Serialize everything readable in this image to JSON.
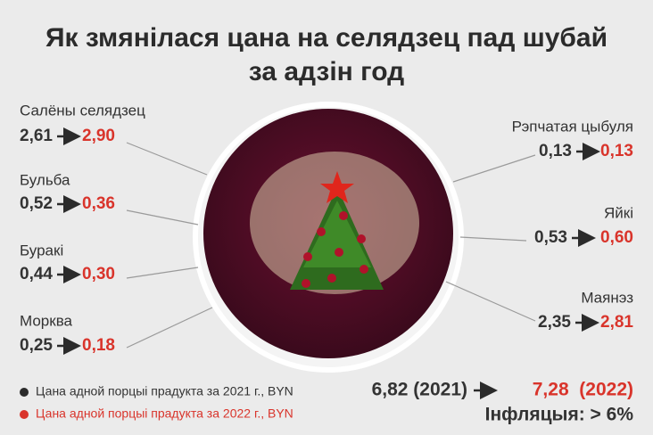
{
  "header": {
    "title_line1": "Як змянілася цана на селядзец пад шубай",
    "title_line2": "за адзін год"
  },
  "items": [
    {
      "name": "Салёны селядзец",
      "price_2021": "2,61",
      "price_2022": "2,90"
    },
    {
      "name": "Бульба",
      "price_2021": "0,52",
      "price_2022": "0,36"
    },
    {
      "name": "Буракі",
      "price_2021": "0,44",
      "price_2022": "0,30"
    },
    {
      "name": "Морква",
      "price_2021": "0,25",
      "price_2022": "0,18"
    },
    {
      "name": "Рэпчатая цыбуля",
      "price_2021": "0,13",
      "price_2022": "0,13"
    },
    {
      "name": "Яйкі",
      "price_2021": "0,53",
      "price_2022": "0,60"
    },
    {
      "name": "Маянэз",
      "price_2021": "2,35",
      "price_2022": "2,81"
    }
  ],
  "legend": {
    "item_2021": "Цана адной порцыі прадукта за 2021 г., BYN",
    "item_2022": "Цана адной порцыі прадукта за 2022 г., BYN"
  },
  "total": {
    "from": "6,82 (2021)",
    "to": "7,28  (2022)",
    "inflation": "Інфляцыя: > 6%"
  }
}
